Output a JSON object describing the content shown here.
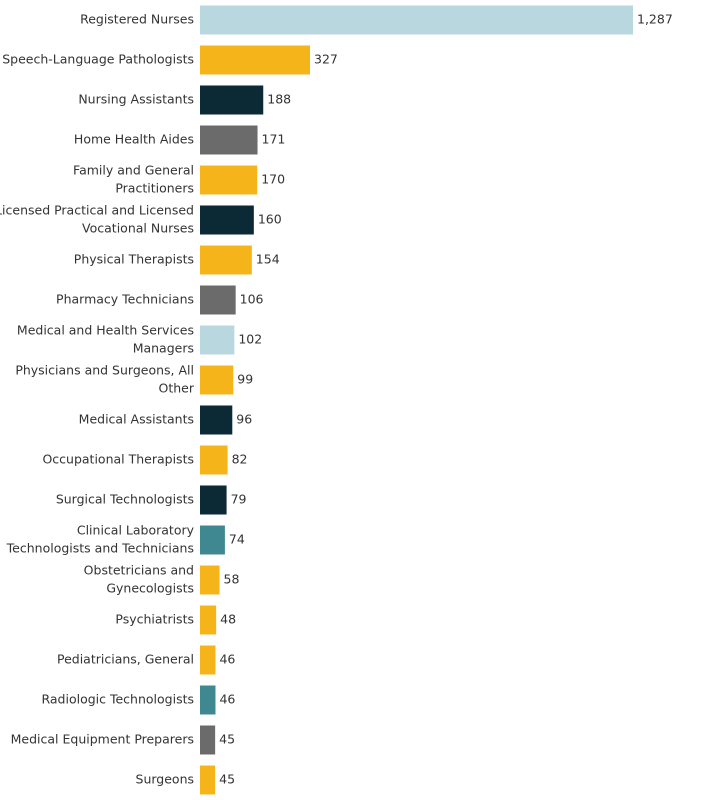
{
  "chart_data": {
    "type": "bar",
    "orientation": "horizontal",
    "title": "",
    "xlabel": "",
    "ylabel": "",
    "grid": false,
    "legend": "none",
    "xlim": [
      0,
      1287
    ],
    "categories": [
      [
        "Registered Nurses"
      ],
      [
        "Speech-Language Pathologists"
      ],
      [
        "Nursing Assistants"
      ],
      [
        "Home Health Aides"
      ],
      [
        "Family and General",
        "Practitioners"
      ],
      [
        "Licensed Practical and Licensed",
        "Vocational Nurses"
      ],
      [
        "Physical Therapists"
      ],
      [
        "Pharmacy Technicians"
      ],
      [
        "Medical and Health Services",
        "Managers"
      ],
      [
        "Physicians and Surgeons, All",
        "Other"
      ],
      [
        "Medical Assistants"
      ],
      [
        "Occupational Therapists"
      ],
      [
        "Surgical Technologists"
      ],
      [
        "Clinical Laboratory",
        "Technologists and Technicians"
      ],
      [
        "Obstetricians and",
        "Gynecologists"
      ],
      [
        "Psychiatrists"
      ],
      [
        "Pediatricians, General"
      ],
      [
        "Radiologic Technologists"
      ],
      [
        "Medical Equipment Preparers"
      ],
      [
        "Surgeons"
      ]
    ],
    "values": [
      1287,
      327,
      188,
      171,
      170,
      160,
      154,
      106,
      102,
      99,
      96,
      82,
      79,
      74,
      58,
      48,
      46,
      46,
      45,
      45
    ],
    "value_labels": [
      "1,287",
      "327",
      "188",
      "171",
      "170",
      "160",
      "154",
      "106",
      "102",
      "99",
      "96",
      "82",
      "79",
      "74",
      "58",
      "48",
      "46",
      "46",
      "45",
      "45"
    ],
    "colors": [
      "#b8d7de",
      "#f5b41a",
      "#0b2a36",
      "#6b6b6b",
      "#f5b41a",
      "#0b2a36",
      "#f5b41a",
      "#6b6b6b",
      "#b8d7de",
      "#f5b41a",
      "#0b2a36",
      "#f5b41a",
      "#0b2a36",
      "#3f8791",
      "#f5b41a",
      "#f5b41a",
      "#f5b41a",
      "#3f8791",
      "#6b6b6b",
      "#f5b41a"
    ]
  }
}
